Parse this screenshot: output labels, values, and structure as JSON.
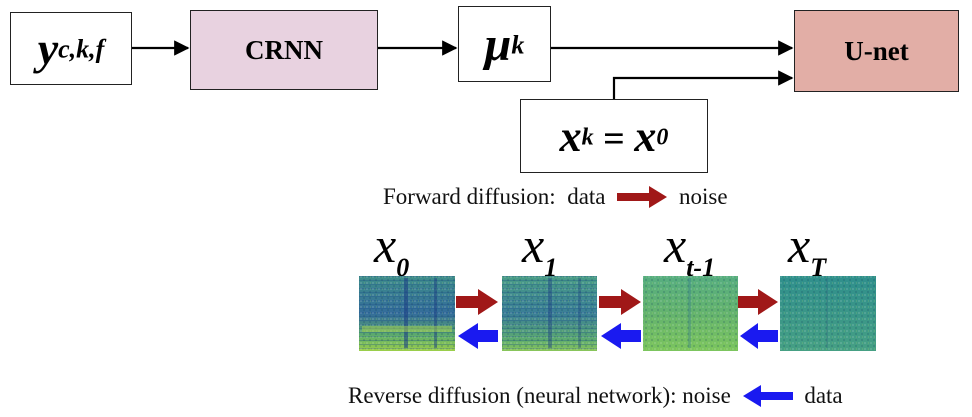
{
  "top_flow": {
    "input": {
      "base": "y",
      "sup": "c,k,f"
    },
    "crnn": {
      "label": "CRNN"
    },
    "mu": {
      "base": "μ",
      "sup": "k"
    },
    "unet": {
      "label": "U-net"
    },
    "x_init": {
      "lhs_base": "x",
      "lhs_sup": "k",
      "eq": " = ",
      "rhs_base": "x",
      "rhs_sup": "0"
    }
  },
  "forward_caption": {
    "prefix": "Forward diffusion:  data",
    "suffix": "noise"
  },
  "reverse_caption": {
    "prefix": "Reverse diffusion (neural network): noise",
    "suffix": "data"
  },
  "steps": [
    {
      "base": "x",
      "sub": "0"
    },
    {
      "base": "x",
      "sub": "1"
    },
    {
      "base": "x",
      "sub": "t-1"
    },
    {
      "base": "x",
      "sub": "T"
    }
  ],
  "colors": {
    "crnn_fill": "#e8d2e0",
    "unet_fill": "#e2aea6",
    "forward_arrow": "#a01818",
    "reverse_arrow": "#1a1af0",
    "spectrogram_base": "#3b8d8c"
  }
}
